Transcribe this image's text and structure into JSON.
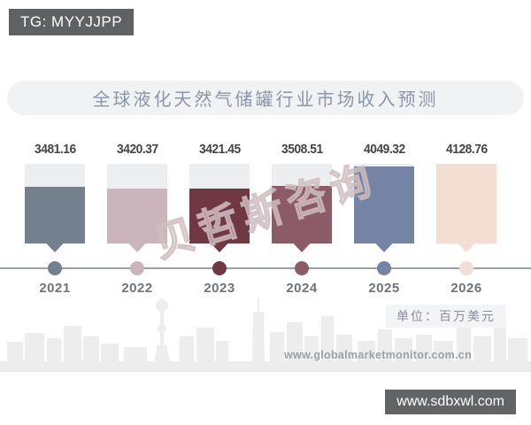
{
  "badges": {
    "tg": "TG: MYYJJPP",
    "site": "www.sdbxwl.com"
  },
  "header": {
    "title": "全球液化天然气储罐行业市场收入预测"
  },
  "watermark": "贝哲斯咨询",
  "unit_label": "单位：百万美元",
  "footer_url": "www.globalmarketmonitor.com.cn",
  "chart_data": {
    "type": "bar",
    "title": "全球液化天然气储罐行业市场收入预测",
    "categories": [
      "2021",
      "2022",
      "2023",
      "2024",
      "2025",
      "2026"
    ],
    "values": [
      3481.16,
      3420.37,
      3421.45,
      3508.51,
      4049.32,
      4128.76
    ],
    "value_labels": [
      "3481.16",
      "3420.37",
      "3421.45",
      "3508.51",
      "4049.32",
      "4128.76"
    ],
    "bar_colors": [
      "#73818F",
      "#CBB5BD",
      "#6F3843",
      "#8C5B68",
      "#7584A5",
      "#F2DED3"
    ],
    "cap_color": "#ECEEF0",
    "timeline_color": "#9AA0A6",
    "unit": "百万美元",
    "ylabel": "",
    "xlabel": "",
    "ylim": [
      0,
      4128.76
    ],
    "legend": "none",
    "grid": false
  }
}
